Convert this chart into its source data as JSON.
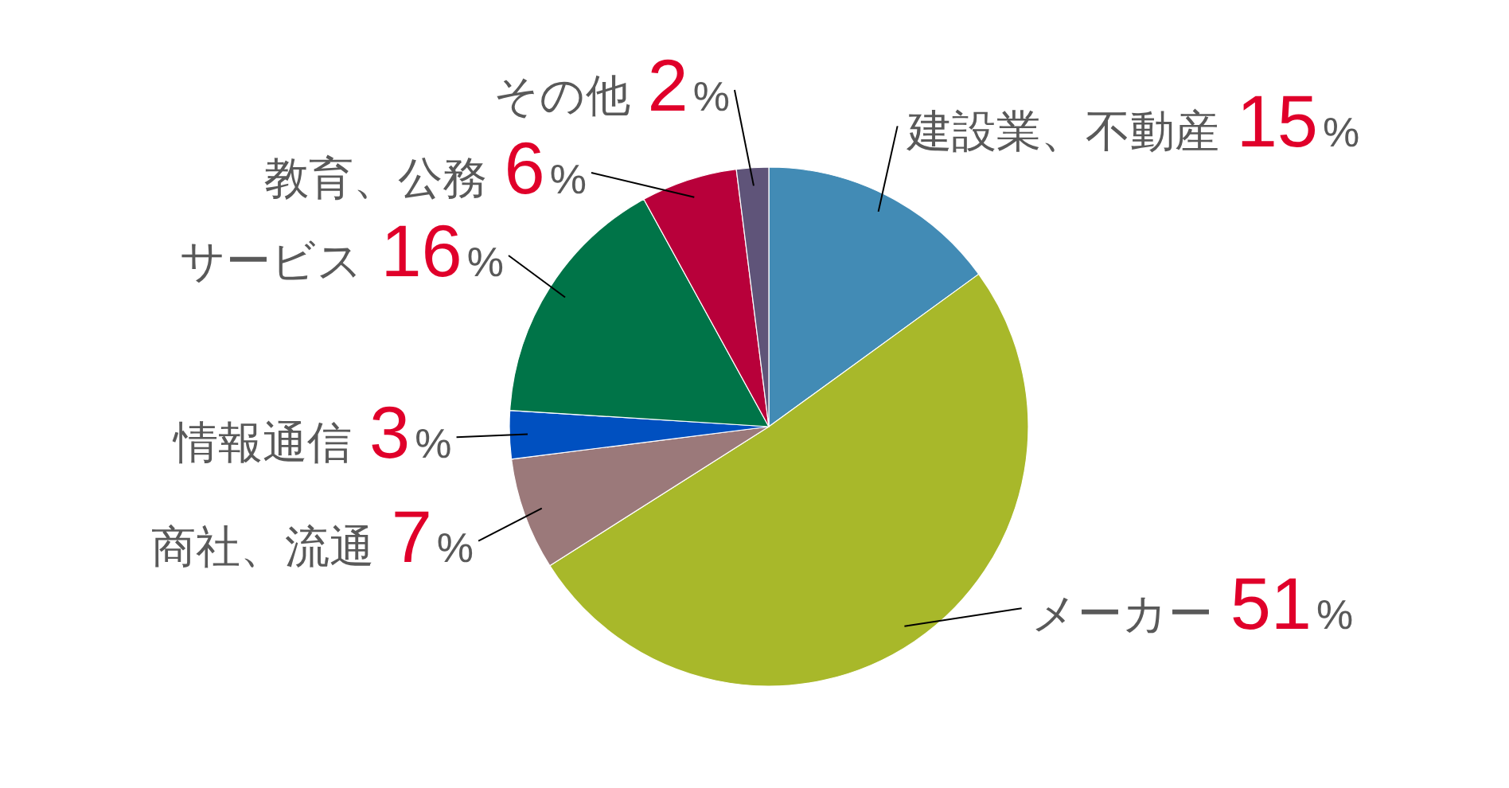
{
  "chart_data": {
    "type": "pie",
    "categories": [
      "建設業、不動産",
      "メーカー",
      "商社、流通",
      "情報通信",
      "サービス",
      "教育、公務",
      "その他"
    ],
    "values": [
      15,
      51,
      7,
      3,
      16,
      6,
      2
    ],
    "colors": [
      "#428bb5",
      "#a8b82a",
      "#9b797a",
      "#0050c0",
      "#007448",
      "#b8003a",
      "#5f5479"
    ],
    "value_labels": [
      "15%",
      "51%",
      "7%",
      "3%",
      "16%",
      "6%",
      "2%"
    ]
  }
}
